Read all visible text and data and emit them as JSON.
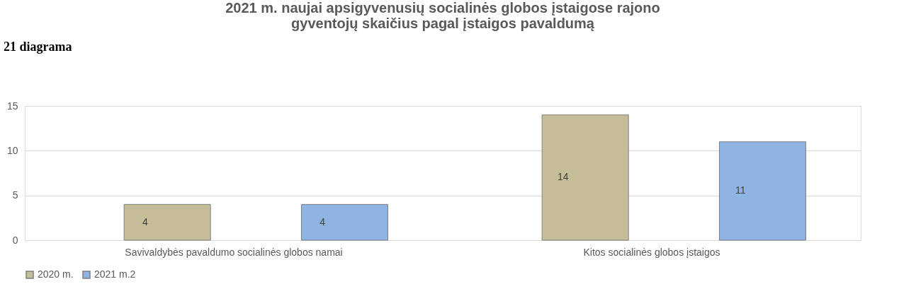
{
  "chart_data": {
    "type": "bar",
    "title": "2021 m. naujai apsigyvenusių socialinės globos įstaigose rajono gyventojų skaičius pagal įstaigos pavaldumą",
    "categories": [
      "Savivaldybės pavaldumo socialinės globos namai",
      "Kitos socialinės globos įstaigos"
    ],
    "series": [
      {
        "name": "2020 m.",
        "color": "#c4bd97",
        "values": [
          4,
          14
        ]
      },
      {
        "name": "2021 m.2",
        "color": "#8db4e2",
        "values": [
          4,
          11
        ]
      }
    ],
    "ylim": [
      0,
      15
    ],
    "yticks": [
      0,
      5,
      10,
      15
    ],
    "grid": "y",
    "legend": "bottom",
    "data_labels": true,
    "annotations": [
      "21 diagrama"
    ]
  }
}
